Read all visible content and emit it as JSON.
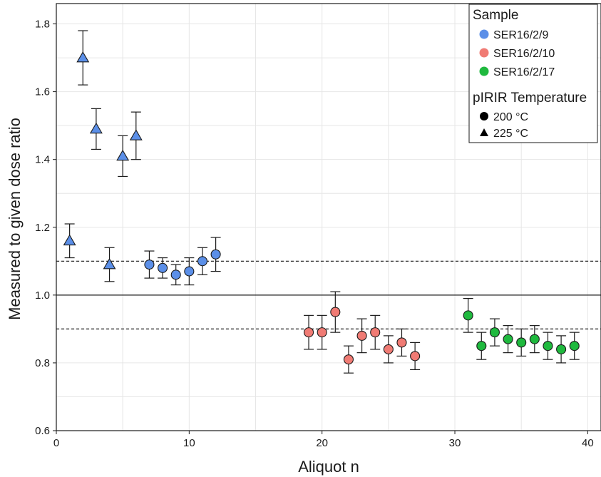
{
  "chart_data": {
    "type": "scatter",
    "title": "",
    "xlabel": "Aliquot n",
    "ylabel": "Measured to given dose ratio",
    "xlim": [
      0,
      41
    ],
    "ylim": [
      0.6,
      1.86
    ],
    "xticks": [
      0,
      10,
      20,
      30,
      40
    ],
    "yticks": [
      0.6,
      0.8,
      1.0,
      1.2,
      1.4,
      1.6,
      1.8
    ],
    "xtick_labels": [
      "0",
      "10",
      "20",
      "30",
      "40"
    ],
    "ytick_labels": [
      "0.6",
      "0.8",
      "1.0",
      "1.2",
      "1.4",
      "1.6",
      "1.8"
    ],
    "grid": true,
    "reference_lines": [
      {
        "y": 1.0,
        "style": "solid"
      },
      {
        "y": 1.1,
        "style": "dashed"
      },
      {
        "y": 0.9,
        "style": "dashed"
      }
    ],
    "legend": {
      "placement": "top-right",
      "sample_title": "Sample",
      "temperature_title": "pIRIR Temperature",
      "samples": [
        {
          "name": "SER16/2/9",
          "color": "#5b8fe8"
        },
        {
          "name": "SER16/2/10",
          "color": "#f07b74"
        },
        {
          "name": "SER16/2/17",
          "color": "#1fb93e"
        }
      ],
      "temperatures": [
        {
          "name": "200 °C",
          "marker": "circle"
        },
        {
          "name": "225 °C",
          "marker": "triangle"
        }
      ]
    },
    "points": [
      {
        "x": 1,
        "y": 1.16,
        "lo": 1.11,
        "hi": 1.21,
        "sample": 0,
        "marker": "triangle"
      },
      {
        "x": 2,
        "y": 1.7,
        "lo": 1.62,
        "hi": 1.78,
        "sample": 0,
        "marker": "triangle"
      },
      {
        "x": 3,
        "y": 1.49,
        "lo": 1.43,
        "hi": 1.55,
        "sample": 0,
        "marker": "triangle"
      },
      {
        "x": 4,
        "y": 1.09,
        "lo": 1.04,
        "hi": 1.14,
        "sample": 0,
        "marker": "triangle"
      },
      {
        "x": 5,
        "y": 1.41,
        "lo": 1.35,
        "hi": 1.47,
        "sample": 0,
        "marker": "triangle"
      },
      {
        "x": 6,
        "y": 1.47,
        "lo": 1.4,
        "hi": 1.54,
        "sample": 0,
        "marker": "triangle"
      },
      {
        "x": 7,
        "y": 1.09,
        "lo": 1.05,
        "hi": 1.13,
        "sample": 0,
        "marker": "circle"
      },
      {
        "x": 8,
        "y": 1.08,
        "lo": 1.05,
        "hi": 1.11,
        "sample": 0,
        "marker": "circle"
      },
      {
        "x": 9,
        "y": 1.06,
        "lo": 1.03,
        "hi": 1.09,
        "sample": 0,
        "marker": "circle"
      },
      {
        "x": 10,
        "y": 1.07,
        "lo": 1.03,
        "hi": 1.11,
        "sample": 0,
        "marker": "circle"
      },
      {
        "x": 11,
        "y": 1.1,
        "lo": 1.06,
        "hi": 1.14,
        "sample": 0,
        "marker": "circle"
      },
      {
        "x": 12,
        "y": 1.12,
        "lo": 1.07,
        "hi": 1.17,
        "sample": 0,
        "marker": "circle"
      },
      {
        "x": 19,
        "y": 0.89,
        "lo": 0.84,
        "hi": 0.94,
        "sample": 1,
        "marker": "circle"
      },
      {
        "x": 20,
        "y": 0.89,
        "lo": 0.84,
        "hi": 0.94,
        "sample": 1,
        "marker": "circle"
      },
      {
        "x": 21,
        "y": 0.95,
        "lo": 0.89,
        "hi": 1.01,
        "sample": 1,
        "marker": "circle"
      },
      {
        "x": 22,
        "y": 0.81,
        "lo": 0.77,
        "hi": 0.85,
        "sample": 1,
        "marker": "circle"
      },
      {
        "x": 23,
        "y": 0.88,
        "lo": 0.83,
        "hi": 0.93,
        "sample": 1,
        "marker": "circle"
      },
      {
        "x": 24,
        "y": 0.89,
        "lo": 0.84,
        "hi": 0.94,
        "sample": 1,
        "marker": "circle"
      },
      {
        "x": 25,
        "y": 0.84,
        "lo": 0.8,
        "hi": 0.88,
        "sample": 1,
        "marker": "circle"
      },
      {
        "x": 26,
        "y": 0.86,
        "lo": 0.82,
        "hi": 0.9,
        "sample": 1,
        "marker": "circle"
      },
      {
        "x": 27,
        "y": 0.82,
        "lo": 0.78,
        "hi": 0.86,
        "sample": 1,
        "marker": "circle"
      },
      {
        "x": 31,
        "y": 0.94,
        "lo": 0.89,
        "hi": 0.99,
        "sample": 2,
        "marker": "circle"
      },
      {
        "x": 32,
        "y": 0.85,
        "lo": 0.81,
        "hi": 0.89,
        "sample": 2,
        "marker": "circle"
      },
      {
        "x": 33,
        "y": 0.89,
        "lo": 0.85,
        "hi": 0.93,
        "sample": 2,
        "marker": "circle"
      },
      {
        "x": 34,
        "y": 0.87,
        "lo": 0.83,
        "hi": 0.91,
        "sample": 2,
        "marker": "circle"
      },
      {
        "x": 35,
        "y": 0.86,
        "lo": 0.82,
        "hi": 0.9,
        "sample": 2,
        "marker": "circle"
      },
      {
        "x": 36,
        "y": 0.87,
        "lo": 0.83,
        "hi": 0.91,
        "sample": 2,
        "marker": "circle"
      },
      {
        "x": 37,
        "y": 0.85,
        "lo": 0.81,
        "hi": 0.89,
        "sample": 2,
        "marker": "circle"
      },
      {
        "x": 38,
        "y": 0.84,
        "lo": 0.8,
        "hi": 0.88,
        "sample": 2,
        "marker": "circle"
      },
      {
        "x": 39,
        "y": 0.85,
        "lo": 0.81,
        "hi": 0.89,
        "sample": 2,
        "marker": "circle"
      }
    ]
  }
}
